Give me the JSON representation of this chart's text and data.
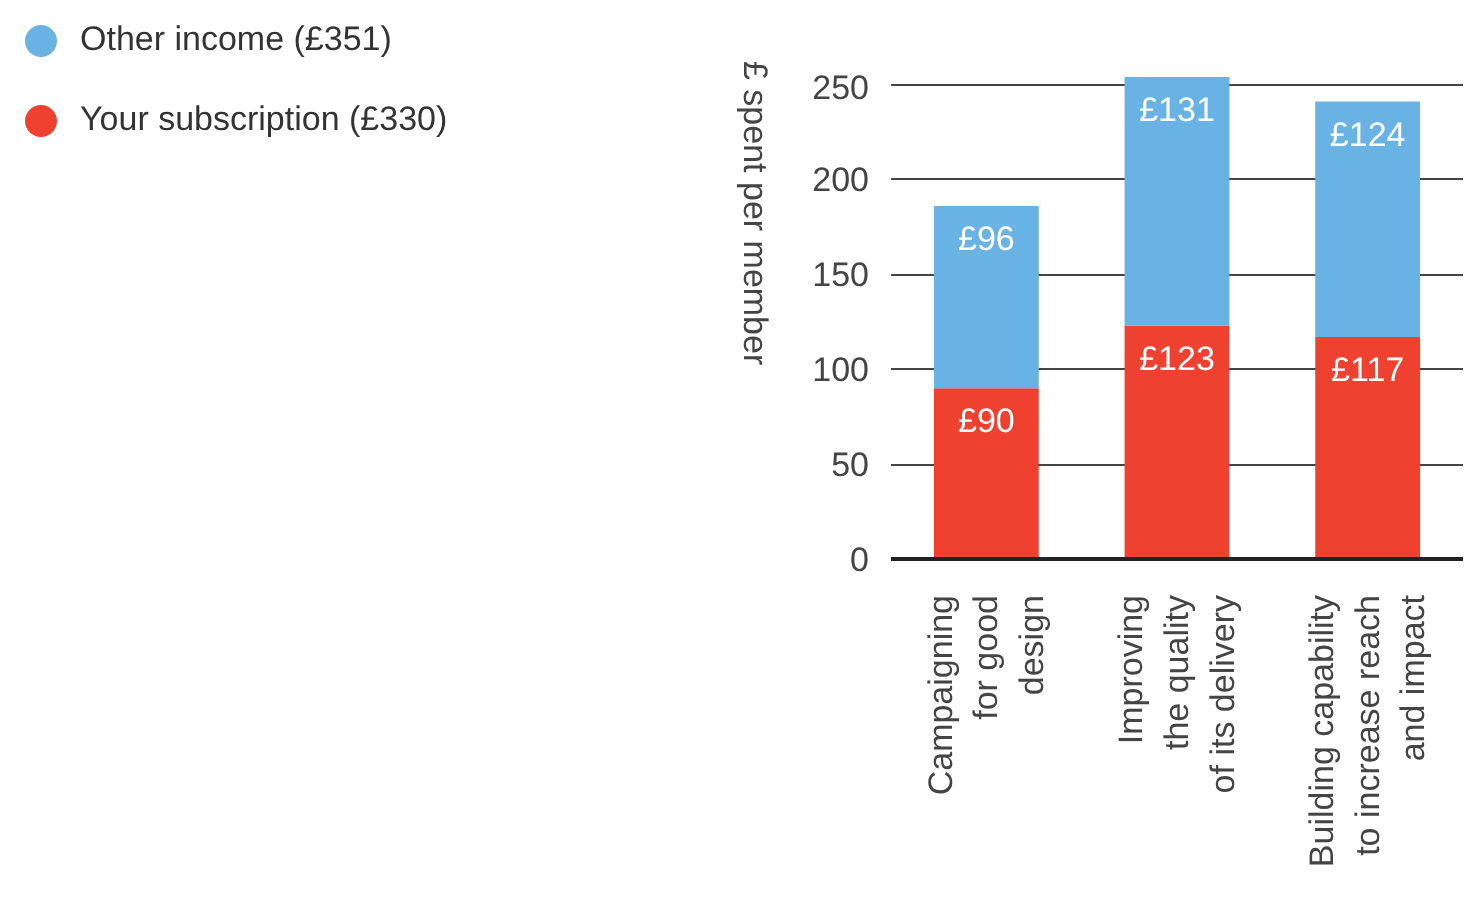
{
  "chart_data": {
    "type": "bar",
    "stacked": true,
    "categories": [
      "Campaigning\nfor good\ndesign",
      "Improving\nthe quality\nof its delivery",
      "Building capability\nto increase reach\nand impact"
    ],
    "series": [
      {
        "name": "Your subscription (£330)",
        "color": "#ee4130",
        "values": [
          90,
          123,
          117
        ],
        "value_labels": [
          "£90",
          "£123",
          "£117"
        ]
      },
      {
        "name": "Other income (£351)",
        "color": "#68b3e3",
        "values": [
          96,
          131,
          124
        ],
        "value_labels": [
          "£96",
          "£131",
          "£124"
        ]
      }
    ],
    "ylabel": "£ spent per member",
    "ylim": [
      0,
      255
    ],
    "yticks": [
      0,
      50,
      100,
      150,
      200,
      250
    ],
    "grid": "y",
    "legend": "top left"
  }
}
